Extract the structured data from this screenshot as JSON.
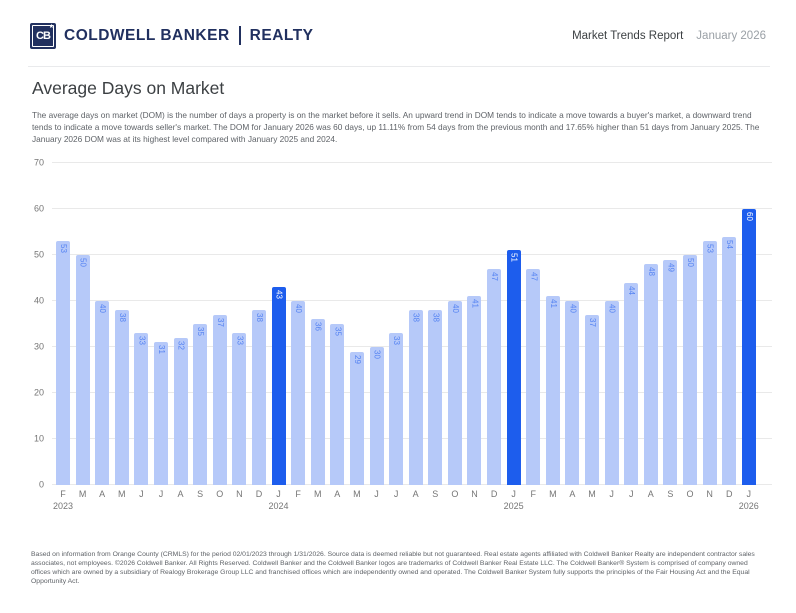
{
  "colors": {
    "brand_navy": "#21305f",
    "bar_color": "#b6c9f9",
    "bar_highlight": "#1d5ded",
    "bar_label": "#5583f2",
    "bar_label_highlight": "#ffffff"
  },
  "header": {
    "logo_monogram": "CB",
    "logo_star": "★",
    "brand_primary": "COLDWELL BANKER",
    "brand_secondary": "REALTY",
    "report_title": "Market Trends Report",
    "report_period": "January 2026"
  },
  "main": {
    "title": "Average Days on Market",
    "description": "The average days on market (DOM) is the number of days a property is on the market before it sells. An upward trend in DOM tends to indicate a move towards a buyer's market, a downward trend tends to indicate a move towards seller's market. The DOM for January 2026 was 60 days, up 11.11% from 54 days from the previous month and 17.65% higher than 51 days from January 2025. The January 2026 DOM was at its highest level compared with January 2025 and 2024."
  },
  "chart_data": {
    "type": "bar",
    "title": "Average Days on Market",
    "xlabel": "",
    "ylabel": "",
    "ylim": [
      0,
      70
    ],
    "yticks": [
      0,
      10,
      20,
      30,
      40,
      50,
      60,
      70
    ],
    "grid": true,
    "categories": [
      "F",
      "M",
      "A",
      "M",
      "J",
      "J",
      "A",
      "S",
      "O",
      "N",
      "D",
      "J",
      "F",
      "M",
      "A",
      "M",
      "J",
      "J",
      "A",
      "S",
      "O",
      "N",
      "D",
      "J",
      "F",
      "M",
      "A",
      "M",
      "J",
      "J",
      "A",
      "S",
      "O",
      "N",
      "D",
      "J"
    ],
    "year_labels": {
      "0": "2023",
      "11": "2024",
      "23": "2025",
      "35": "2026"
    },
    "values": [
      53,
      50,
      40,
      38,
      33,
      31,
      32,
      35,
      37,
      33,
      38,
      43,
      40,
      36,
      35,
      29,
      30,
      33,
      38,
      38,
      40,
      41,
      47,
      51,
      47,
      41,
      40,
      37,
      40,
      44,
      48,
      49,
      50,
      53,
      54,
      60
    ],
    "highlight_indices": [
      11,
      23,
      35
    ],
    "series_name": "Average Days on Market",
    "bar_color": "#b6c9f9",
    "highlight_color": "#1d5ded"
  },
  "footer": {
    "disclaimer": "Based on information from Orange County (CRMLS) for the period 02/01/2023 through 1/31/2026. Source data is deemed reliable but not guaranteed. Real estate agents affiliated with Coldwell Banker Realty are independent contractor sales associates, not employees. ©2026 Coldwell Banker. All Rights Reserved. Coldwell Banker and the Coldwell Banker logos are trademarks of Coldwell Banker Real Estate LLC. The Coldwell Banker® System is comprised of company owned offices which are owned by a subsidiary of Realogy Brokerage Group LLC and franchised offices which are independently owned and operated. The Coldwell Banker System fully supports the principles of the Fair Housing Act and the Equal Opportunity Act."
  }
}
